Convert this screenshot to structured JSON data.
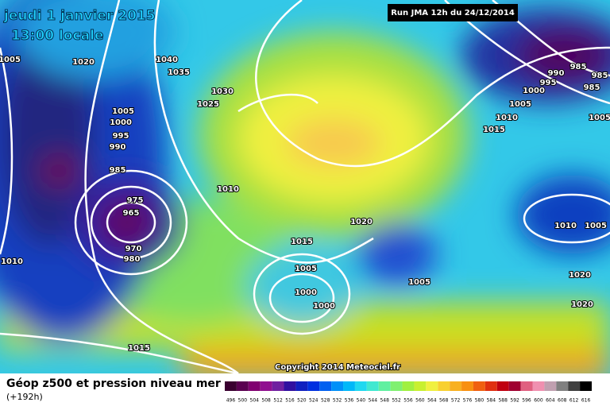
{
  "header": {
    "date": "jeudi 1 janvier 2015",
    "time": "13:00 locale",
    "run": "Run JMA 12h du 24/12/2014"
  },
  "isobar_labels": [
    "1005",
    "1020",
    "1040",
    "1035",
    "1030",
    "1025",
    "1005",
    "1000",
    "995",
    "990",
    "985",
    "1010",
    "975",
    "965",
    "970",
    "980",
    "1010",
    "1015",
    "1020",
    "1005",
    "1000",
    "1000",
    "1005",
    "1015",
    "985",
    "990",
    "995",
    "985",
    "985",
    "1000",
    "1005",
    "1010",
    "1015",
    "1005",
    "1010",
    "1005",
    "1020",
    "1020"
  ],
  "copyright": "Copyright 2014 Meteociel.fr",
  "footer": {
    "title": "Géop z500 et pression niveau mer",
    "subtitle": "(+192h)"
  },
  "legend": {
    "labels": [
      "496",
      "500",
      "504",
      "508",
      "512",
      "516",
      "520",
      "524",
      "528",
      "532",
      "536",
      "540",
      "544",
      "548",
      "552",
      "556",
      "560",
      "564",
      "568",
      "572",
      "576",
      "580",
      "584",
      "588",
      "592",
      "596",
      "600",
      "604",
      "608",
      "612",
      "616"
    ]
  }
}
